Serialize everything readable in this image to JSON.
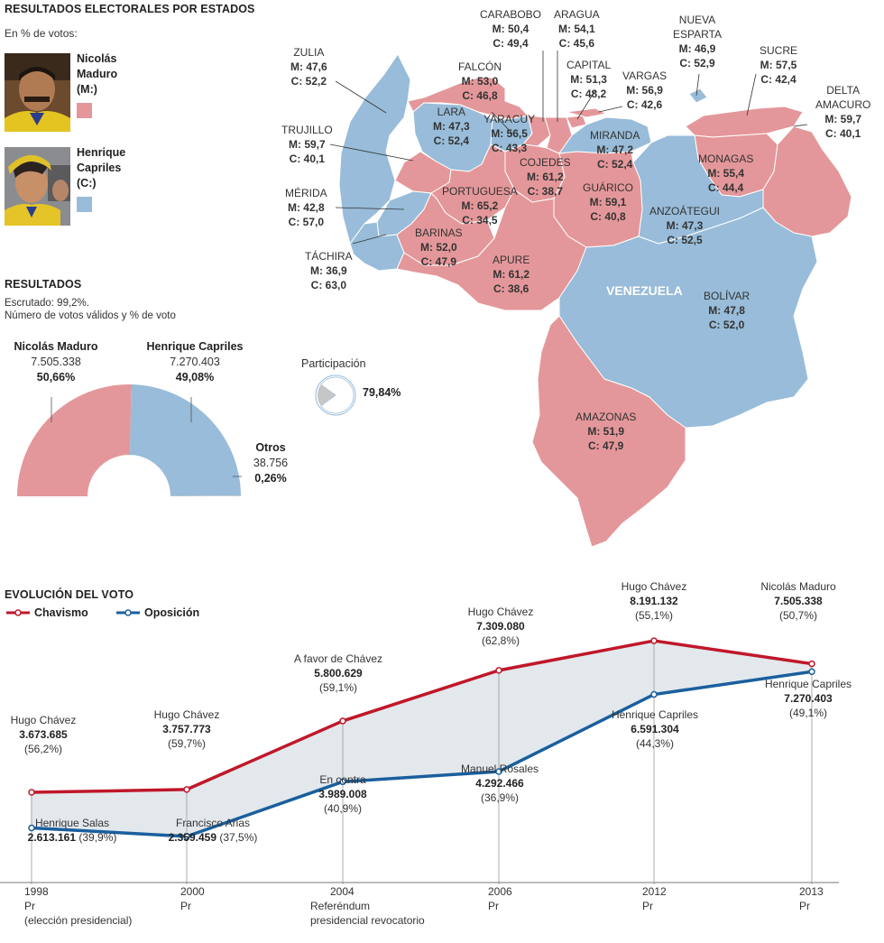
{
  "header": {
    "title": "RESULTADOS ELECTORALES POR ESTADOS",
    "subtitle": "En % de votos:"
  },
  "candidates": [
    {
      "name_line1": "Nicolás",
      "name_line2": "Maduro",
      "abbr": "(M:)",
      "color": "#e4979a",
      "photo_icon": "maduro-photo"
    },
    {
      "name_line1": "Henrique",
      "name_line2": "Capriles",
      "abbr": "(C:)",
      "color": "#98bcd9",
      "photo_icon": "capriles-photo"
    }
  ],
  "map": {
    "country_label": "VENEZUELA",
    "states": [
      {
        "name": "CARABOBO",
        "m": "M: 50,4",
        "c": "C: 49,4"
      },
      {
        "name": "ARAGUA",
        "m": "M: 54,1",
        "c": "C: 45,6"
      },
      {
        "name": "NUEVA\nESPARTA",
        "m": "M: 46,9",
        "c": "C: 52,9"
      },
      {
        "name": "ZULIA",
        "m": "M: 47,6",
        "c": "C: 52,2"
      },
      {
        "name": "FALCÓN",
        "m": "M: 53,0",
        "c": "C: 46,8"
      },
      {
        "name": "CAPITAL",
        "m": "M: 51,3",
        "c": "C: 48,2"
      },
      {
        "name": "VARGAS",
        "m": "M: 56,9",
        "c": "C: 42,6"
      },
      {
        "name": "SUCRE",
        "m": "M: 57,5",
        "c": "C: 42,4"
      },
      {
        "name": "DELTA\nAMACURO",
        "m": "M: 59,7",
        "c": "C: 40,1"
      },
      {
        "name": "LARA",
        "m": "M: 47,3",
        "c": "C: 52,4"
      },
      {
        "name": "YARACUY",
        "m": "M: 56,5",
        "c": "C: 43,3"
      },
      {
        "name": "MIRANDA",
        "m": "M: 47,2",
        "c": "C: 52,4"
      },
      {
        "name": "TRUJILLO",
        "m": "M: 59,7",
        "c": "C: 40,1"
      },
      {
        "name": "COJEDES",
        "m": "M: 61,2",
        "c": "C: 38,7"
      },
      {
        "name": "MONAGAS",
        "m": "M: 55,4",
        "c": "C: 44,4"
      },
      {
        "name": "PORTUGUESA",
        "m": "M: 65,2",
        "c": "C: 34,5"
      },
      {
        "name": "GUÁRICO",
        "m": "M: 59,1",
        "c": "C: 40,8"
      },
      {
        "name": "MÉRIDA",
        "m": "M: 42,8",
        "c": "C: 57,0"
      },
      {
        "name": "ANZOÁTEGUI",
        "m": "M: 47,3",
        "c": "C: 52,5"
      },
      {
        "name": "BARINAS",
        "m": "M: 52,0",
        "c": "C: 47,9"
      },
      {
        "name": "TÁCHIRA",
        "m": "M: 36,9",
        "c": "C: 63,0"
      },
      {
        "name": "APURE",
        "m": "M: 61,2",
        "c": "C: 38,6"
      },
      {
        "name": "BOLÍVAR",
        "m": "M: 47,8",
        "c": "C: 52,0"
      },
      {
        "name": "AMAZONAS",
        "m": "M: 51,9",
        "c": "C: 47,9"
      }
    ]
  },
  "results": {
    "title": "RESULTADOS",
    "scrutiny": "Escrutado: 99,2%.",
    "note": "Número de votos válidos y % de voto",
    "maduro": {
      "name": "Nicolás Maduro",
      "votes": "7.505.338",
      "pct": "50,66%",
      "share": 50.66
    },
    "capriles": {
      "name": "Henrique Capriles",
      "votes": "7.270.403",
      "pct": "49,08%",
      "share": 49.08
    },
    "otros": {
      "name": "Otros",
      "votes": "38.756",
      "pct": "0,26%",
      "share": 0.26
    },
    "participation_label": "Participación",
    "participation_pct": "79,84%",
    "participation_value": 79.84
  },
  "evolution": {
    "title": "EVOLUCIÓN DEL VOTO",
    "legend": [
      {
        "label": "Chavismo",
        "color": "#c0172a"
      },
      {
        "label": "Oposición",
        "color": "#1a5f9e"
      }
    ],
    "years": [
      {
        "year": "1998",
        "line2": "Pr",
        "line3": "(elección presidencial)",
        "line4": ""
      },
      {
        "year": "2000",
        "line2": "Pr",
        "line3": "",
        "line4": ""
      },
      {
        "year": "2004",
        "line2": "Referéndum",
        "line3": "presidencial revocatorio",
        "line4": ""
      },
      {
        "year": "2006",
        "line2": "Pr",
        "line3": "",
        "line4": ""
      },
      {
        "year": "2012",
        "line2": "Pr",
        "line3": "",
        "line4": ""
      },
      {
        "year": "2013",
        "line2": "Pr",
        "line3": "",
        "line4": ""
      }
    ],
    "chavismo_labels": [
      {
        "name": "Hugo Chávez",
        "votes": "3.673.685",
        "pct": "(56,2%)"
      },
      {
        "name": "Hugo Chávez",
        "votes": "3.757.773",
        "pct": "(59,7%)"
      },
      {
        "name": "A favor de Chávez",
        "votes": "5.800.629",
        "pct": "(59,1%)"
      },
      {
        "name": "Hugo Chávez",
        "votes": "7.309.080",
        "pct": "(62,8%)"
      },
      {
        "name": "Hugo Chávez",
        "votes": "8.191.132",
        "pct": "(55,1%)"
      },
      {
        "name": "Nicolás Maduro",
        "votes": "7.505.338",
        "pct": "(50,7%)"
      }
    ],
    "oposicion_labels": [
      {
        "name": "Henrique Salas",
        "votes": "2.613.161",
        "pct": "(39,9%)"
      },
      {
        "name": "Francisco Arias",
        "votes": "2.359.459",
        "pct": "(37,5%)"
      },
      {
        "name": "En contra",
        "votes": "3.989.008",
        "pct": "(40,9%)"
      },
      {
        "name": "Manuel Rosales",
        "votes": "4.292.466",
        "pct": "(36,9%)"
      },
      {
        "name": "Henrique Capriles",
        "votes": "6.591.304",
        "pct": "(44,3%)"
      },
      {
        "name": "Henrique Capriles",
        "votes": "7.270.403",
        "pct": "(49,1%)"
      }
    ]
  },
  "chart_data": [
    {
      "type": "pie",
      "variant": "semi-donut",
      "categories": [
        "Nicolás Maduro",
        "Henrique Capriles",
        "Otros"
      ],
      "values": [
        50.66,
        49.08,
        0.26
      ],
      "votes": [
        7505338,
        7270403,
        38756
      ],
      "colors": [
        "#e4979a",
        "#98bcd9",
        "#cccccc"
      ]
    },
    {
      "type": "pie",
      "categories": [
        "Participación"
      ],
      "values": [
        79.84
      ]
    },
    {
      "type": "line",
      "x": [
        "1998",
        "2000",
        "2004",
        "2006",
        "2012",
        "2013"
      ],
      "series": [
        {
          "name": "Chavismo",
          "values": [
            3673685,
            3757773,
            5800629,
            7309080,
            8191132,
            7505338
          ],
          "pct": [
            56.2,
            59.7,
            59.1,
            62.8,
            55.1,
            50.7
          ],
          "color": "#c0172a"
        },
        {
          "name": "Oposición",
          "values": [
            2613161,
            2359459,
            3989008,
            4292466,
            6591304,
            7270403
          ],
          "pct": [
            39.9,
            37.5,
            40.9,
            36.9,
            44.3,
            49.1
          ],
          "color": "#1a5f9e"
        }
      ],
      "ylim": [
        1200000,
        9000000
      ],
      "fill_between": "#e3e8ec"
    }
  ]
}
